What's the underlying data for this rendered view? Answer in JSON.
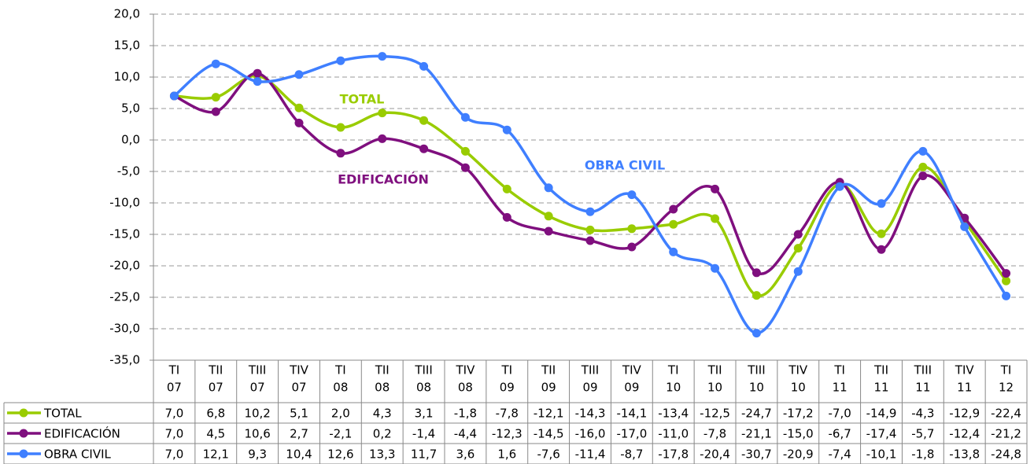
{
  "chart_data": {
    "type": "line",
    "categories": [
      [
        "TI",
        "07"
      ],
      [
        "TII",
        "07"
      ],
      [
        "TIII",
        "07"
      ],
      [
        "TIV",
        "07"
      ],
      [
        "TI",
        "08"
      ],
      [
        "TII",
        "08"
      ],
      [
        "TIII",
        "08"
      ],
      [
        "TIV",
        "08"
      ],
      [
        "TI",
        "09"
      ],
      [
        "TII",
        "09"
      ],
      [
        "TIII",
        "09"
      ],
      [
        "TIV",
        "09"
      ],
      [
        "TI",
        "10"
      ],
      [
        "TII",
        "10"
      ],
      [
        "TIII",
        "10"
      ],
      [
        "TIV",
        "10"
      ],
      [
        "TI",
        "11"
      ],
      [
        "TII",
        "11"
      ],
      [
        "TIII",
        "11"
      ],
      [
        "TIV",
        "11"
      ],
      [
        "TI",
        "12"
      ]
    ],
    "series": [
      {
        "name": "TOTAL",
        "color": "#99cc00",
        "values": [
          7.0,
          6.8,
          10.2,
          5.1,
          2.0,
          4.3,
          3.1,
          -1.8,
          -7.8,
          -12.1,
          -14.3,
          -14.1,
          -13.4,
          -12.5,
          -24.7,
          -17.2,
          -7.0,
          -14.9,
          -4.3,
          -12.9,
          -22.4
        ],
        "value_labels": [
          "7,0",
          "6,8",
          "10,2",
          "5,1",
          "2,0",
          "4,3",
          "3,1",
          "-1,8",
          "-7,8",
          "-12,1",
          "-14,3",
          "-14,1",
          "-13,4",
          "-12,5",
          "-24,7",
          "-17,2",
          "-7,0",
          "-14,9",
          "-4,3",
          "-12,9",
          "-22,4"
        ]
      },
      {
        "name": "EDIFICACIÓN",
        "color": "#7f0f7e",
        "values": [
          7.0,
          4.5,
          10.6,
          2.7,
          -2.1,
          0.2,
          -1.4,
          -4.4,
          -12.3,
          -14.5,
          -16.0,
          -17.0,
          -11.0,
          -7.8,
          -21.1,
          -15.0,
          -6.7,
          -17.4,
          -5.7,
          -12.4,
          -21.2
        ],
        "value_labels": [
          "7,0",
          "4,5",
          "10,6",
          "2,7",
          "-2,1",
          "0,2",
          "-1,4",
          "-4,4",
          "-12,3",
          "-14,5",
          "-16,0",
          "-17,0",
          "-11,0",
          "-7,8",
          "-21,1",
          "-15,0",
          "-6,7",
          "-17,4",
          "-5,7",
          "-12,4",
          "-21,2"
        ]
      },
      {
        "name": "OBRA CIVIL",
        "color": "#3f7fff",
        "values": [
          7.0,
          12.1,
          9.3,
          10.4,
          12.6,
          13.3,
          11.7,
          3.6,
          1.6,
          -7.6,
          -11.4,
          -8.7,
          -17.8,
          -20.4,
          -30.7,
          -20.9,
          -7.4,
          -10.1,
          -1.8,
          -13.8,
          -24.8
        ],
        "value_labels": [
          "7,0",
          "12,1",
          "9,3",
          "10,4",
          "12,6",
          "13,3",
          "11,7",
          "3,6",
          "1,6",
          "-7,6",
          "-11,4",
          "-8,7",
          "-17,8",
          "-20,4",
          "-30,7",
          "-20,9",
          "-7,4",
          "-10,1",
          "-1,8",
          "-13,8",
          "-24,8"
        ]
      }
    ],
    "annotations": [
      "TOTAL",
      "EDIFICACIÓN",
      "OBRA CIVIL"
    ],
    "ylim": [
      -35,
      20
    ],
    "yticks": [
      {
        "value": -35,
        "label": "-35,0"
      },
      {
        "value": -30,
        "label": "-30,0"
      },
      {
        "value": -25,
        "label": "-25,0"
      },
      {
        "value": -20,
        "label": "-20,0"
      },
      {
        "value": -15,
        "label": "-15,0"
      },
      {
        "value": -10,
        "label": "-10,0"
      },
      {
        "value": -5,
        "label": "-5,0"
      },
      {
        "value": 0,
        "label": "0,0"
      },
      {
        "value": 5,
        "label": "5,0"
      },
      {
        "value": 10,
        "label": "10,0"
      },
      {
        "value": 15,
        "label": "15,0"
      },
      {
        "value": 20,
        "label": "20,0"
      }
    ],
    "grid": true
  }
}
